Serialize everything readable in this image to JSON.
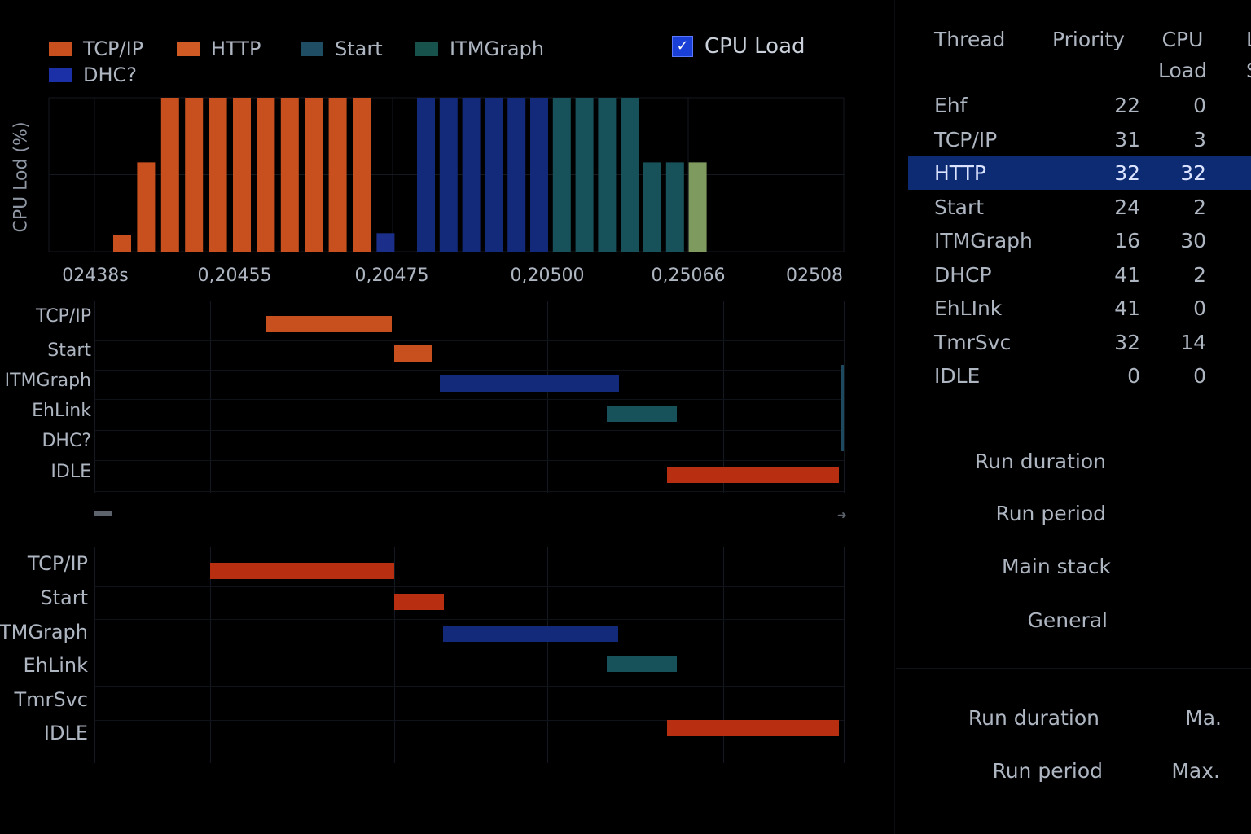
{
  "legend": [
    {
      "label": "TCP/IP",
      "color": "#c8501f",
      "icon": "orange-swatch"
    },
    {
      "label": "HTTP",
      "color": "#cf5a24",
      "icon": "orange-swatch"
    },
    {
      "label": "Start",
      "color": "#1f4d63",
      "icon": "teal-swatch"
    },
    {
      "label": "ITMGraph",
      "color": "#17524d",
      "icon": "teal-swatch"
    },
    {
      "label": "DHC?",
      "color": "#1b2fa6",
      "icon": "blue-swatch"
    }
  ],
  "cpu_toggle": {
    "label": "CPU Load",
    "checked": true,
    "icon": "checkmark-icon"
  },
  "chart_data": {
    "type": "bar",
    "ylabel": "CPU Lod (%)",
    "x_tick_labels": [
      "02438s",
      "0,20455",
      "0,20475",
      "0,20500",
      "0,25066",
      "02508"
    ],
    "ylim": [
      0,
      100
    ],
    "grid": true,
    "legend_position": "top-left",
    "bars": [
      {
        "value": 11,
        "color": "#c8501f"
      },
      {
        "value": 58,
        "color": "#c8501f"
      },
      {
        "value": 100,
        "color": "#c8501f"
      },
      {
        "value": 100,
        "color": "#c8501f"
      },
      {
        "value": 100,
        "color": "#c8501f"
      },
      {
        "value": 100,
        "color": "#c8501f"
      },
      {
        "value": 100,
        "color": "#c8501f"
      },
      {
        "value": 100,
        "color": "#c8501f"
      },
      {
        "value": 100,
        "color": "#c8501f"
      },
      {
        "value": 100,
        "color": "#c8501f"
      },
      {
        "value": 100,
        "color": "#c8501f"
      },
      {
        "value": 12,
        "color": "#1b2f8a"
      },
      {
        "value": 0,
        "color": "#000000"
      },
      {
        "value": 100,
        "color": "#13297a"
      },
      {
        "value": 100,
        "color": "#13297a"
      },
      {
        "value": 100,
        "color": "#13297a"
      },
      {
        "value": 100,
        "color": "#13297a"
      },
      {
        "value": 100,
        "color": "#13297a"
      },
      {
        "value": 100,
        "color": "#13297a"
      },
      {
        "value": 100,
        "color": "#17515a"
      },
      {
        "value": 100,
        "color": "#17515a"
      },
      {
        "value": 100,
        "color": "#17515a"
      },
      {
        "value": 100,
        "color": "#17515a"
      },
      {
        "value": 58,
        "color": "#17515a"
      },
      {
        "value": 58,
        "color": "#17515a"
      },
      {
        "value": 58,
        "color": "#7f9a5e"
      }
    ]
  },
  "gantt1": {
    "rows": [
      {
        "label": "TCP/IP"
      },
      {
        "label": "Start"
      },
      {
        "label": "ITMGraph"
      },
      {
        "label": "EhLink"
      },
      {
        "label": "DHC?"
      },
      {
        "label": "IDLE"
      }
    ]
  },
  "gantt2": {
    "rows": [
      {
        "label": "TCP/IP"
      },
      {
        "label": "Start"
      },
      {
        "label": "TMGraph"
      },
      {
        "label": "EhLink"
      },
      {
        "label": "TmrSvc"
      },
      {
        "label": "IDLE"
      }
    ]
  },
  "thread_table": {
    "headers": {
      "thread": "Thread",
      "priority": "Priority",
      "cpu_line1": "CPU",
      "cpu_line2": "Load",
      "extra_line1": "L",
      "extra_line2": "S"
    },
    "rows": [
      {
        "thread": "Ehf",
        "priority": "22",
        "cpu": "0"
      },
      {
        "thread": "TCP/IP",
        "priority": "31",
        "cpu": "3"
      },
      {
        "thread": "HTTP",
        "priority": "32",
        "cpu": "32",
        "selected": true
      },
      {
        "thread": "Start",
        "priority": "24",
        "cpu": "2"
      },
      {
        "thread": "ITMGraph",
        "priority": "16",
        "cpu": "30"
      },
      {
        "thread": "DHCP",
        "priority": "41",
        "cpu": "2"
      },
      {
        "thread": "EhLInk",
        "priority": "41",
        "cpu": "0"
      },
      {
        "thread": "TmrSvc",
        "priority": "32",
        "cpu": "14"
      },
      {
        "thread": "IDLE",
        "priority": "0",
        "cpu": "0"
      }
    ]
  },
  "info_panel": {
    "labels": [
      "Run duration",
      "Run period",
      "Main stack",
      "General"
    ]
  },
  "bottom_panel": {
    "run_duration": "Run duration",
    "run_duration_value": "Ma.",
    "run_period": "Run period",
    "run_period_value": "Max."
  }
}
